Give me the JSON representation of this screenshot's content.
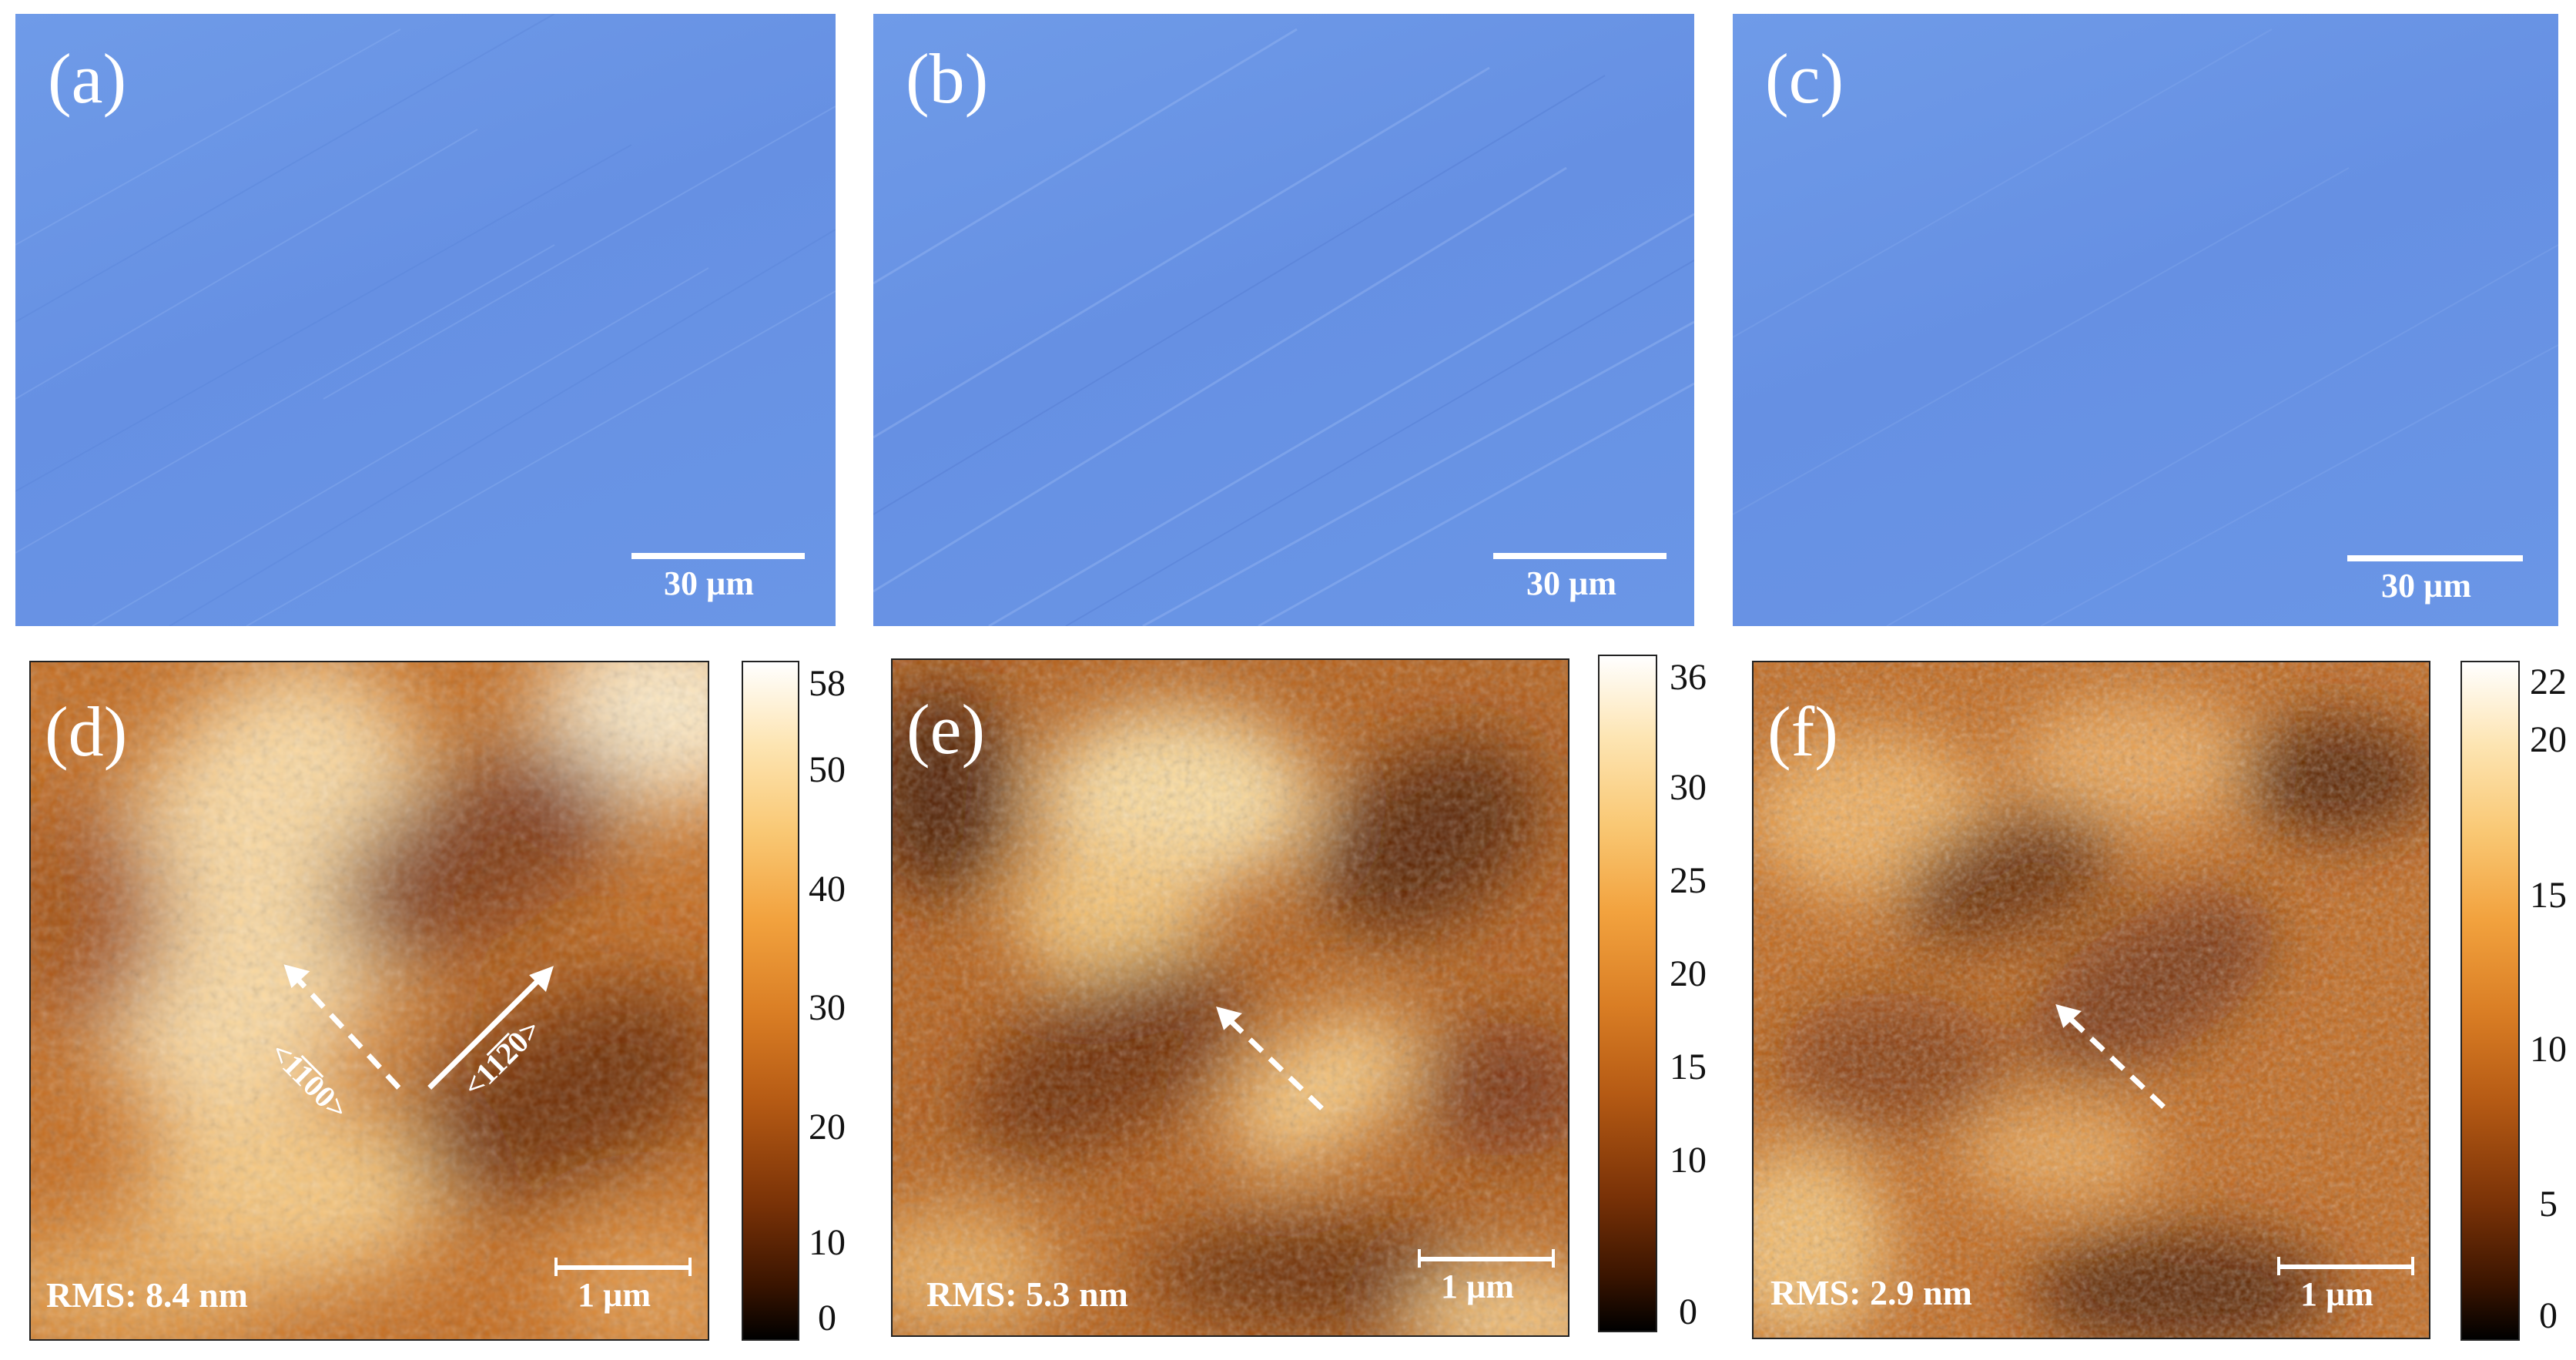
{
  "optical_panels": [
    {
      "label": "(a)",
      "scale": "30 µm"
    },
    {
      "label": "(b)",
      "scale": "30 µm"
    },
    {
      "label": "(c)",
      "scale": "30 µm"
    }
  ],
  "afm_panels": [
    {
      "label": "(d)",
      "scale": "1 µm",
      "rms": "RMS: 8.4 nm",
      "colorbar_ticks": [
        "58",
        "50",
        "40",
        "30",
        "20",
        "10",
        "0"
      ],
      "orientation_labels": [
        "<1̅1̅00>",
        "<11̅2̅0>"
      ]
    },
    {
      "label": "(e)",
      "scale": "1 µm",
      "rms": "RMS: 5.3 nm",
      "colorbar_ticks": [
        "36",
        "30",
        "25",
        "20",
        "15",
        "10",
        "0"
      ]
    },
    {
      "label": "(f)",
      "scale": "1 µm",
      "rms": "RMS: 2.9 nm",
      "colorbar_ticks": [
        "22",
        "20",
        "15",
        "10",
        "5",
        "0"
      ]
    }
  ],
  "colors": {
    "optical_blue": "#6a96e6",
    "afm_brown": "#b55a14",
    "afm_light": "#fde5b3"
  }
}
